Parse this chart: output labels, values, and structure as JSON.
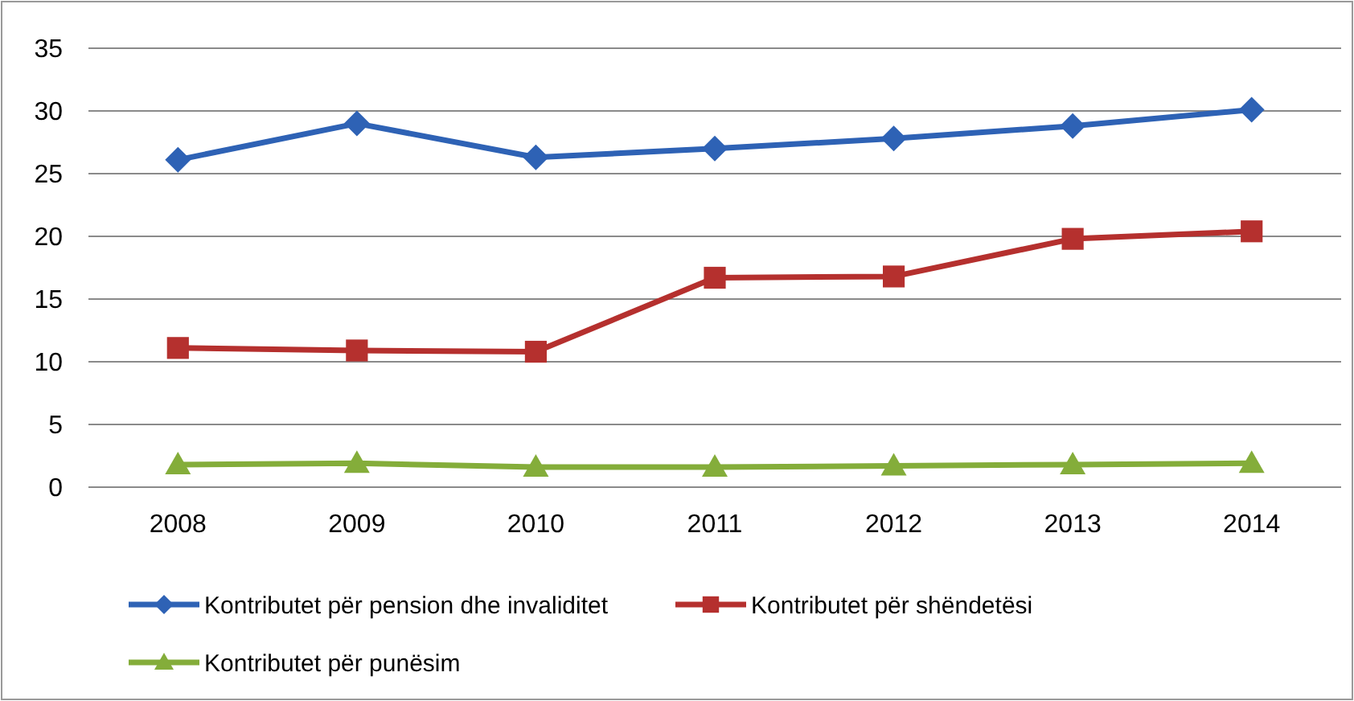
{
  "chart_data": {
    "type": "line",
    "categories": [
      "2008",
      "2009",
      "2010",
      "2011",
      "2012",
      "2013",
      "2014"
    ],
    "series": [
      {
        "name": "Kontributet për pension dhe invaliditet",
        "color": "#2e62b5",
        "marker": "diamond",
        "values": [
          26.1,
          29.0,
          26.3,
          27.0,
          27.8,
          28.8,
          30.1
        ]
      },
      {
        "name": "Kontributet për shëndetësi",
        "color": "#b5302e",
        "marker": "square",
        "values": [
          11.1,
          10.9,
          10.8,
          16.7,
          16.8,
          19.8,
          20.4
        ]
      },
      {
        "name": "Kontributet për punësim",
        "color": "#84ad3a",
        "marker": "triangle",
        "values": [
          1.8,
          1.9,
          1.6,
          1.6,
          1.7,
          1.8,
          1.9
        ]
      }
    ],
    "ylim": [
      0,
      35
    ],
    "yticks": [
      0,
      5,
      10,
      15,
      20,
      25,
      30,
      35
    ],
    "grid": "y",
    "legend": "bottom",
    "line_style": "solid"
  }
}
